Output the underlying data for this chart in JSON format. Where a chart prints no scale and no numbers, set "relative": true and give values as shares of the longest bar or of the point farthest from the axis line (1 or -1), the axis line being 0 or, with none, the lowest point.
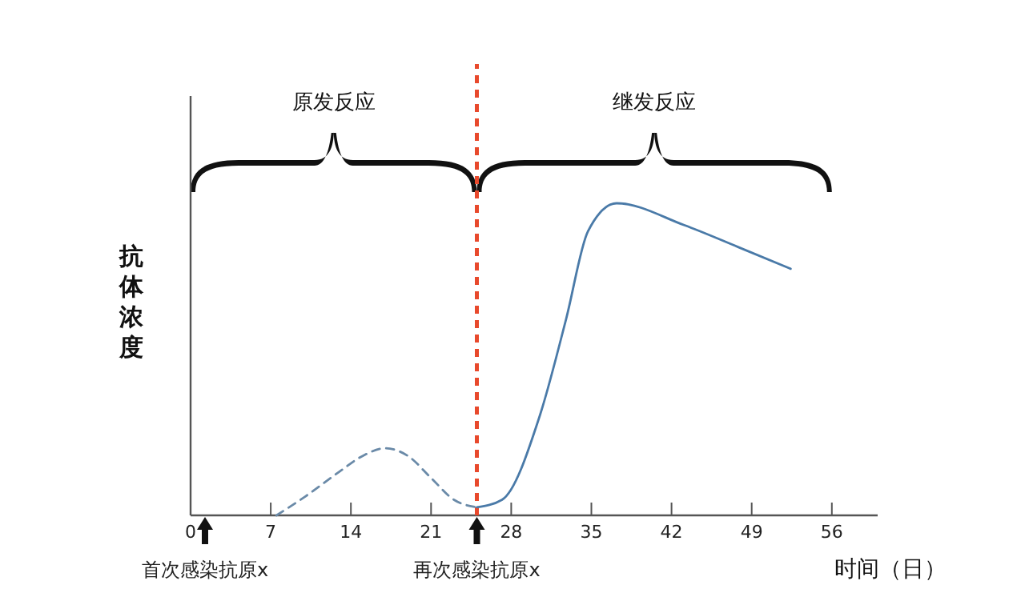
{
  "chart_data": {
    "type": "line",
    "relative": true,
    "xlabel": "时间（日）",
    "ylabel": "抗体浓度",
    "xlim": [
      0,
      60
    ],
    "xticks": [
      0,
      7,
      14,
      21,
      28,
      35,
      42,
      49,
      56
    ],
    "series": [
      {
        "color": "#6a8aa8",
        "line_style": "dashed",
        "x": [
          7.5,
          10,
          13,
          15,
          17,
          19,
          21,
          23,
          25
        ],
        "values": [
          0,
          0.06,
          0.14,
          0.19,
          0.215,
          0.19,
          0.12,
          0.05,
          0.026
        ]
      },
      {
        "color": "#4a7aa8",
        "line_style": "solid",
        "x": [
          25,
          27.2,
          30.5,
          32.8,
          34.7,
          37.2,
          43.1,
          47.8,
          52.4
        ],
        "values": [
          0.026,
          0.05,
          0.32,
          0.63,
          0.91,
          1,
          0.93,
          0.86,
          0.79
        ]
      }
    ],
    "ref_lines": [
      {
        "axis": "x",
        "value": 25,
        "color": "#e8492c",
        "line_style": "dashed"
      }
    ],
    "annotations": [
      "原发反应",
      "继发反应",
      "首次感染抗原x",
      "再次感染抗原x"
    ]
  }
}
